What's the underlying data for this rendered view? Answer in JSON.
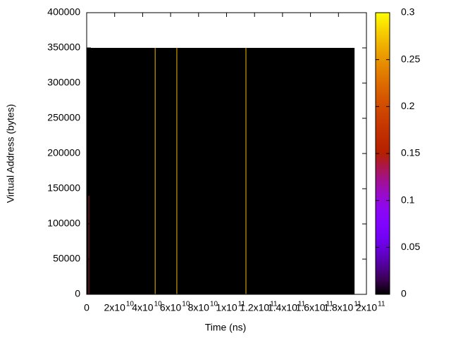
{
  "chart_data": {
    "type": "heatmap",
    "xlabel": "Time (ns)",
    "ylabel": "Virtual Address (bytes)",
    "xlim": [
      0,
      200000000000
    ],
    "ylim": [
      0,
      400000
    ],
    "xticks": [
      0,
      {
        "value": 20000000000,
        "label": "2x10",
        "exponent": "10"
      },
      {
        "value": 40000000000,
        "label": "4x10",
        "exponent": "10"
      },
      {
        "value": 60000000000,
        "label": "6x10",
        "exponent": "10"
      },
      {
        "value": 80000000000,
        "label": "8x10",
        "exponent": "10"
      },
      {
        "value": 100000000000,
        "label": "1x10",
        "exponent": "11"
      },
      {
        "value": 120000000000,
        "label": "1.2x10",
        "exponent": "11"
      },
      {
        "value": 140000000000,
        "label": "1.4x10",
        "exponent": "11"
      },
      {
        "value": 160000000000,
        "label": "1.6x10",
        "exponent": "11"
      },
      {
        "value": 180000000000,
        "label": "1.8x10",
        "exponent": "11"
      },
      {
        "value": 200000000000,
        "label": "2x10",
        "exponent": "11"
      }
    ],
    "yticks": [
      0,
      50000,
      100000,
      150000,
      200000,
      250000,
      300000,
      350000,
      400000
    ],
    "clim": [
      0,
      0.3
    ],
    "cticks": [
      0,
      0.05,
      0.1,
      0.15,
      0.2,
      0.25,
      0.3
    ],
    "palette": "gnuplot-rgb-7-5-15",
    "cells": [
      {
        "x": [
          0,
          191500000000
        ],
        "y": [
          0,
          350000
        ],
        "value": 0
      },
      {
        "x": [
          1300000000,
          1800000000
        ],
        "y": [
          0,
          140000
        ],
        "value": 0.14
      },
      {
        "x": [
          48700000000,
          49200000000
        ],
        "y": [
          0,
          350000
        ],
        "value": 0.27
      },
      {
        "x": [
          64200000000,
          64700000000
        ],
        "y": [
          0,
          350000
        ],
        "value": 0.27
      },
      {
        "x": [
          113600000000,
          114100000000
        ],
        "y": [
          0,
          350000
        ],
        "value": 0.27
      }
    ]
  }
}
